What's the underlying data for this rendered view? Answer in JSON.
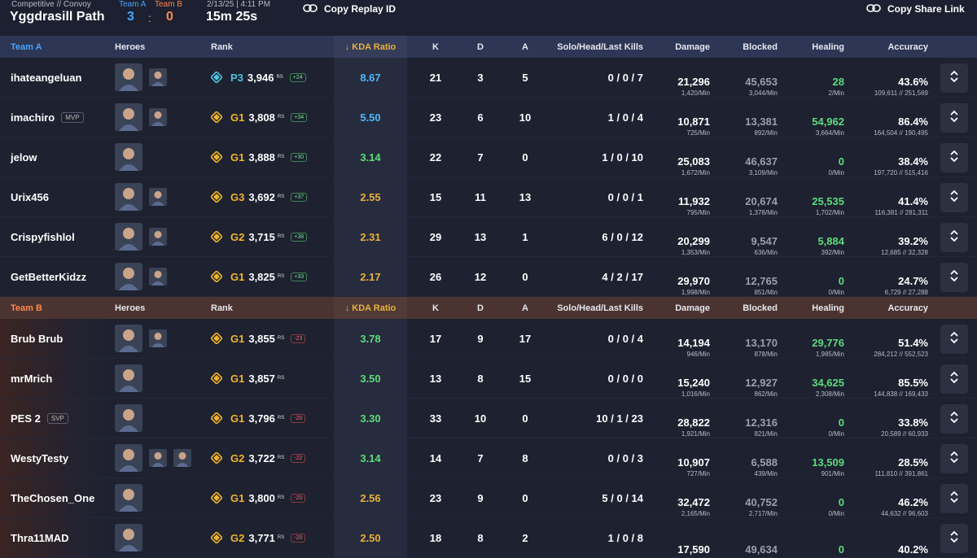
{
  "match": {
    "mode": "Competitive // Convoy",
    "map": "Yggdrasill Path",
    "team_a_label": "Team A",
    "team_b_label": "Team B",
    "score_a": "3",
    "score_sep": ":",
    "score_b": "0",
    "datetime": "2/13/25 | 4:11 PM",
    "duration": "15m 25s"
  },
  "actions": {
    "copy_replay": "Copy Replay ID",
    "copy_share": "Copy Share Link"
  },
  "columns": {
    "heroes": "Heroes",
    "rank": "Rank",
    "kda": "↓ KDA Ratio",
    "k": "K",
    "d": "D",
    "a": "A",
    "kills": "Solo/Head/Last Kills",
    "damage": "Damage",
    "blocked": "Blocked",
    "healing": "Healing",
    "accuracy": "Accuracy"
  },
  "colors": {
    "team_a": "#4aa3ff",
    "team_b": "#ff8a4c",
    "kda_high": "#4db8ff",
    "kda_mid": "#5ddc7c",
    "kda_low": "#e8b23a",
    "healing": "#5ddc7c",
    "rank_diamond": "#4ec3e0",
    "rank_gold": "#f0b429"
  },
  "team_a": [
    {
      "name": "ihateangeluan",
      "badge": "",
      "heroes": [
        "captain-america-portrait",
        "hero-portrait"
      ],
      "tier": "P3",
      "rank_color": "diamond",
      "rs": "3,946",
      "rs_label": "RS",
      "delta": "+24",
      "kda": "8.67",
      "kda_color": "high",
      "k": "21",
      "d": "3",
      "a": "5",
      "kills": "0 / 0 / 7",
      "damage": "21,296",
      "damage_min": "1,420/Min",
      "blocked": "45,653",
      "blocked_min": "3,044/Min",
      "healing": "28",
      "healing_min": "2/Min",
      "accuracy": "43.6%",
      "accuracy_detail": "109,611 // 251,569"
    },
    {
      "name": "imachiro",
      "badge": "MVP",
      "heroes": [
        "invisible-woman-portrait",
        "hero-portrait"
      ],
      "tier": "G1",
      "rank_color": "gold",
      "rs": "3,808",
      "rs_label": "RS",
      "delta": "+34",
      "kda": "5.50",
      "kda_color": "high",
      "k": "23",
      "d": "6",
      "a": "10",
      "kills": "1 / 0 / 4",
      "damage": "10,871",
      "damage_min": "725/Min",
      "blocked": "13,381",
      "blocked_min": "892/Min",
      "healing": "54,962",
      "healing_min": "3,664/Min",
      "accuracy": "86.4%",
      "accuracy_detail": "164,504 // 190,495"
    },
    {
      "name": "jelow",
      "badge": "",
      "heroes": [
        "doctor-strange-portrait"
      ],
      "tier": "G1",
      "rank_color": "gold",
      "rs": "3,888",
      "rs_label": "RS",
      "delta": "+30",
      "kda": "3.14",
      "kda_color": "mid",
      "k": "22",
      "d": "7",
      "a": "0",
      "kills": "1 / 0 / 10",
      "damage": "25,083",
      "damage_min": "1,672/Min",
      "blocked": "46,637",
      "blocked_min": "3,109/Min",
      "healing": "0",
      "healing_min": "0/Min",
      "accuracy": "38.4%",
      "accuracy_detail": "197,720 // 515,416"
    },
    {
      "name": "Urix456",
      "badge": "",
      "heroes": [
        "invisible-woman-portrait",
        "hero-portrait"
      ],
      "tier": "G3",
      "rank_color": "gold",
      "rs": "3,692",
      "rs_label": "RS",
      "delta": "+37",
      "kda": "2.55",
      "kda_color": "low",
      "k": "15",
      "d": "11",
      "a": "13",
      "kills": "0 / 0 / 1",
      "damage": "11,932",
      "damage_min": "795/Min",
      "blocked": "20,674",
      "blocked_min": "1,378/Min",
      "healing": "25,535",
      "healing_min": "1,702/Min",
      "accuracy": "41.4%",
      "accuracy_detail": "116,381 // 281,311"
    },
    {
      "name": "Crispyfishlol",
      "badge": "",
      "heroes": [
        "iron-man-portrait",
        "hero-portrait"
      ],
      "tier": "G2",
      "rank_color": "gold",
      "rs": "3,715",
      "rs_label": "RS",
      "delta": "+38",
      "kda": "2.31",
      "kda_color": "low",
      "k": "29",
      "d": "13",
      "a": "1",
      "kills": "6 / 0 / 12",
      "damage": "20,299",
      "damage_min": "1,353/Min",
      "blocked": "9,547",
      "blocked_min": "636/Min",
      "healing": "5,884",
      "healing_min": "392/Min",
      "accuracy": "39.2%",
      "accuracy_detail": "12,685 // 32,328"
    },
    {
      "name": "GetBetterKidzz",
      "badge": "",
      "heroes": [
        "hero-portrait",
        "hero-portrait"
      ],
      "tier": "G1",
      "rank_color": "gold",
      "rs": "3,825",
      "rs_label": "RS",
      "delta": "+33",
      "kda": "2.17",
      "kda_color": "low",
      "k": "26",
      "d": "12",
      "a": "0",
      "kills": "4 / 2 / 17",
      "damage": "29,970",
      "damage_min": "1,998/Min",
      "blocked": "12,765",
      "blocked_min": "851/Min",
      "healing": "0",
      "healing_min": "0/Min",
      "accuracy": "24.7%",
      "accuracy_detail": "6,729 // 27,288"
    }
  ],
  "team_b": [
    {
      "name": "Brub Brub",
      "badge": "",
      "heroes": [
        "loki-portrait",
        "hero-portrait"
      ],
      "tier": "G1",
      "rank_color": "gold",
      "rs": "3,855",
      "rs_label": "RS",
      "delta": "-23",
      "kda": "3.78",
      "kda_color": "mid",
      "k": "17",
      "d": "9",
      "a": "17",
      "kills": "0 / 0 / 4",
      "damage": "14,194",
      "damage_min": "946/Min",
      "blocked": "13,170",
      "blocked_min": "878/Min",
      "healing": "29,776",
      "healing_min": "1,985/Min",
      "accuracy": "51.4%",
      "accuracy_detail": "284,212 // 552,523"
    },
    {
      "name": "mrMrich",
      "badge": "",
      "heroes": [
        "invisible-woman-portrait"
      ],
      "tier": "G1",
      "rank_color": "gold",
      "rs": "3,857",
      "rs_label": "RS",
      "delta": "",
      "kda": "3.50",
      "kda_color": "mid",
      "k": "13",
      "d": "8",
      "a": "15",
      "kills": "0 / 0 / 0",
      "damage": "15,240",
      "damage_min": "1,016/Min",
      "blocked": "12,927",
      "blocked_min": "862/Min",
      "healing": "34,625",
      "healing_min": "2,308/Min",
      "accuracy": "85.5%",
      "accuracy_detail": "144,838 // 169,433"
    },
    {
      "name": "PES 2",
      "badge": "SVP",
      "heroes": [
        "hero-portrait"
      ],
      "tier": "G1",
      "rank_color": "gold",
      "rs": "3,796",
      "rs_label": "RS",
      "delta": "-20",
      "kda": "3.30",
      "kda_color": "mid",
      "k": "33",
      "d": "10",
      "a": "0",
      "kills": "10 / 1 / 23",
      "damage": "28,822",
      "damage_min": "1,921/Min",
      "blocked": "12,316",
      "blocked_min": "821/Min",
      "healing": "0",
      "healing_min": "0/Min",
      "accuracy": "33.8%",
      "accuracy_detail": "20,589 // 60,933"
    },
    {
      "name": "WestyTesty",
      "badge": "",
      "heroes": [
        "hero-portrait",
        "hero-portrait",
        "hero-portrait"
      ],
      "tier": "G2",
      "rank_color": "gold",
      "rs": "3,722",
      "rs_label": "RS",
      "delta": "-22",
      "kda": "3.14",
      "kda_color": "mid",
      "k": "14",
      "d": "7",
      "a": "8",
      "kills": "0 / 0 / 3",
      "damage": "10,907",
      "damage_min": "727/Min",
      "blocked": "6,588",
      "blocked_min": "439/Min",
      "healing": "13,509",
      "healing_min": "901/Min",
      "accuracy": "28.5%",
      "accuracy_detail": "111,810 // 391,861"
    },
    {
      "name": "TheChosen_One",
      "badge": "",
      "heroes": [
        "thor-portrait"
      ],
      "tier": "G1",
      "rank_color": "gold",
      "rs": "3,800",
      "rs_label": "RS",
      "delta": "-20",
      "kda": "2.56",
      "kda_color": "low",
      "k": "23",
      "d": "9",
      "a": "0",
      "kills": "5 / 0 / 14",
      "damage": "32,472",
      "damage_min": "2,165/Min",
      "blocked": "40,752",
      "blocked_min": "2,717/Min",
      "healing": "0",
      "healing_min": "0/Min",
      "accuracy": "46.2%",
      "accuracy_detail": "44,632 // 96,603"
    },
    {
      "name": "Thra11MAD",
      "badge": "",
      "heroes": [
        "hero-portrait"
      ],
      "tier": "G2",
      "rank_color": "gold",
      "rs": "3,771",
      "rs_label": "RS",
      "delta": "-20",
      "kda": "2.50",
      "kda_color": "low",
      "k": "18",
      "d": "8",
      "a": "2",
      "kills": "1 / 0 / 8",
      "damage": "17,590",
      "damage_min": "",
      "blocked": "49,634",
      "blocked_min": "",
      "healing": "0",
      "healing_min": "",
      "accuracy": "40.2%",
      "accuracy_detail": ""
    }
  ]
}
